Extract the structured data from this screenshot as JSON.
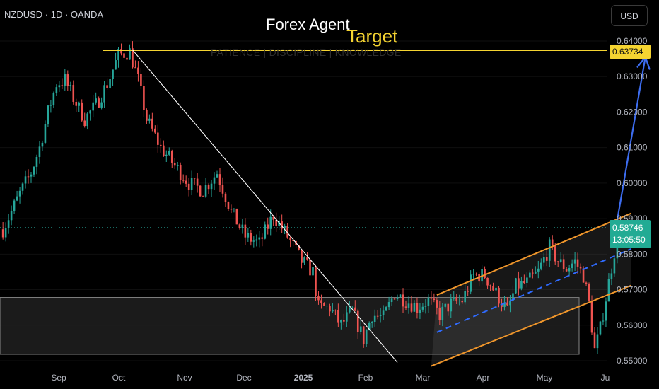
{
  "header": {
    "symbol": "NZDUSD · 1D · OANDA",
    "headline": "Forex Agent",
    "watermark": "PATIENCE | DISCIPLINE | KNOWLEDGE",
    "target_label": "Target",
    "currency": "USD"
  },
  "price_tags": {
    "target_price": "0.63734",
    "last_price": "0.58746",
    "countdown": "13:05:50"
  },
  "colors": {
    "background": "#000000",
    "up_candle": "#26a69a",
    "down_candle": "#ef5350",
    "channel": "#f0962b",
    "midline": "#2f6bff",
    "target_line": "#f5d431",
    "trendline": "#ffffff",
    "zone": "#3c3c3c",
    "arrow": "#3d6df0"
  },
  "chart_data": {
    "type": "candlestick",
    "instrument": "NZDUSD",
    "timeframe": "1D",
    "x": [
      "Sep",
      "Oct",
      "Nov",
      "Dec",
      "2025",
      "Feb",
      "Mar",
      "Apr",
      "May",
      "Ju"
    ],
    "y_ticks": [
      0.55,
      0.56,
      0.57,
      0.58,
      0.59,
      0.6,
      0.61,
      0.62,
      0.63,
      0.64
    ],
    "y_tick_labels": [
      "0.55000",
      "0.56000",
      "0.57000",
      "0.58000",
      "0.59000",
      "0.60000",
      "0.61000",
      "0.62000",
      "0.63000",
      "0.64000"
    ],
    "ylim": [
      0.549,
      0.6455
    ],
    "price_path": [
      [
        -10,
        0.587
      ],
      [
        -4,
        0.597
      ],
      [
        0,
        0.603
      ],
      [
        3,
        0.61
      ],
      [
        6,
        0.62
      ],
      [
        9,
        0.628
      ],
      [
        12,
        0.629
      ],
      [
        15,
        0.624
      ],
      [
        19,
        0.618
      ],
      [
        23,
        0.622
      ],
      [
        27,
        0.628
      ],
      [
        31,
        0.636
      ],
      [
        35,
        0.637
      ],
      [
        38,
        0.629
      ],
      [
        41,
        0.618
      ],
      [
        46,
        0.61
      ],
      [
        51,
        0.605
      ],
      [
        56,
        0.6
      ],
      [
        61,
        0.598
      ],
      [
        66,
        0.603
      ],
      [
        71,
        0.592
      ],
      [
        76,
        0.585
      ],
      [
        81,
        0.583
      ],
      [
        86,
        0.591
      ],
      [
        91,
        0.585
      ],
      [
        96,
        0.578
      ],
      [
        100,
        0.575
      ],
      [
        102,
        0.565
      ],
      [
        106,
        0.565
      ],
      [
        110,
        0.56
      ],
      [
        114,
        0.564
      ],
      [
        118,
        0.556
      ],
      [
        121,
        0.563
      ],
      [
        125,
        0.562
      ],
      [
        129,
        0.569
      ],
      [
        133,
        0.567
      ],
      [
        137,
        0.565
      ],
      [
        141,
        0.567
      ],
      [
        145,
        0.563
      ],
      [
        149,
        0.566
      ],
      [
        153,
        0.567
      ],
      [
        157,
        0.574
      ],
      [
        161,
        0.574
      ],
      [
        165,
        0.569
      ],
      [
        169,
        0.564
      ],
      [
        172,
        0.571
      ],
      [
        176,
        0.572
      ],
      [
        180,
        0.575
      ],
      [
        184,
        0.582
      ],
      [
        187,
        0.578
      ],
      [
        190,
        0.576
      ],
      [
        193,
        0.578
      ],
      [
        196,
        0.574
      ],
      [
        198,
        0.566
      ],
      [
        200,
        0.553
      ],
      [
        202,
        0.559
      ],
      [
        205,
        0.572
      ],
      [
        208,
        0.585
      ],
      [
        210,
        0.587
      ]
    ],
    "last_price": 0.58746,
    "target": 0.63734,
    "support_zone": [
      0.5518,
      0.5678
    ],
    "channel_upper": [
      [
        144,
        0.5685
      ],
      [
        213,
        0.5915
      ]
    ],
    "channel_lower": [
      [
        142,
        0.5485
      ],
      [
        213,
        0.5712
      ]
    ],
    "channel_mid": [
      [
        144,
        0.558
      ],
      [
        213,
        0.5815
      ]
    ],
    "trendline": [
      [
        36,
        0.6375
      ],
      [
        130,
        0.5495
      ]
    ],
    "arrow": [
      [
        208,
        0.5895
      ],
      [
        218,
        0.6355
      ]
    ]
  }
}
